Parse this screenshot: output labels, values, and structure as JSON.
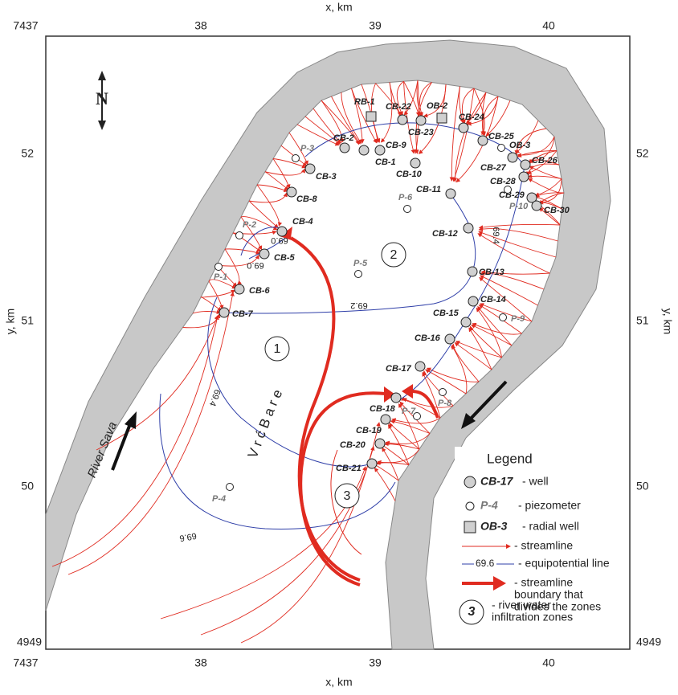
{
  "x_axis": {
    "label": "x, km",
    "ticks": [
      "7437",
      "38",
      "39",
      "40"
    ]
  },
  "y_axis": {
    "label": "y, km",
    "ticks": [
      "52",
      "51",
      "50",
      "4949"
    ]
  },
  "north": "N",
  "wells": [
    "CB-1",
    "CB-2",
    "CB-3",
    "CB-4",
    "CB-5",
    "CB-6",
    "CB-7",
    "CB-8",
    "CB-9",
    "CB-10",
    "CB-11",
    "CB-12",
    "CB-13",
    "CB-14",
    "CB-15",
    "CB-16",
    "CB-17",
    "CB-18",
    "CB-19",
    "CB-20",
    "CB-21",
    "CB-22",
    "CB-23",
    "CB-24",
    "CB-25",
    "CB-26",
    "CB-27",
    "CB-28",
    "CB-29",
    "CB-30"
  ],
  "piezometers": [
    "P-1",
    "P-2",
    "P-3",
    "P-4",
    "P-5",
    "P-6",
    "P-7",
    "P-8",
    "P-9",
    "P-10",
    "OB-3"
  ],
  "radial_wells": [
    "RB-1",
    "OB-2"
  ],
  "contour_labels": [
    "69.0",
    "69.0",
    "69.2",
    "69.4",
    "69.4",
    "69.6"
  ],
  "zones": [
    "1",
    "2",
    "3"
  ],
  "places": {
    "river": "River Sava",
    "settlement": "V r ć    B a r e"
  },
  "legend": {
    "title": "Legend",
    "items": [
      {
        "symbol": "CB-17",
        "lines": [
          "- well"
        ]
      },
      {
        "symbol": "P-4",
        "lines": [
          "- piezometer"
        ]
      },
      {
        "symbol": "OB-3",
        "lines": [
          "- radial well"
        ]
      },
      {
        "lines": [
          "- streamline"
        ]
      },
      {
        "symbol": "69.6",
        "lines": [
          "- equipotential line"
        ]
      },
      {
        "lines": [
          "- streamline",
          "boundary that",
          "divides the zones"
        ]
      },
      {
        "symbol": "3",
        "lines": [
          "- river water",
          "infiltration zones"
        ]
      }
    ]
  }
}
